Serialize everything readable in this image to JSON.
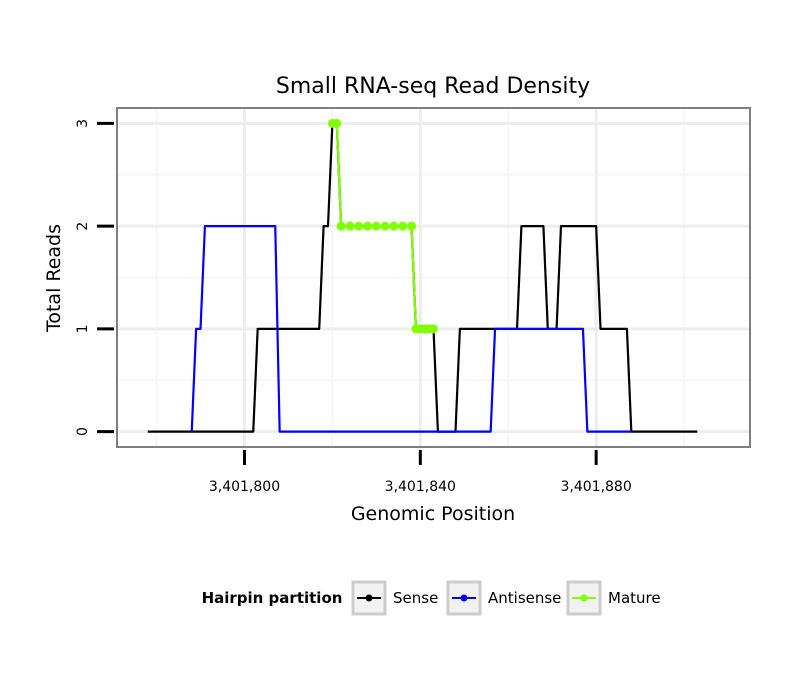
{
  "chart_data": {
    "type": "line",
    "title": "Small RNA-seq Read Density",
    "xlabel": "Genomic Position",
    "ylabel": "Total Reads",
    "xlim": [
      3401771,
      3401915
    ],
    "ylim": [
      -0.15,
      3.15
    ],
    "x_ticks": [
      3401800,
      3401840,
      3401880
    ],
    "x_tick_labels": [
      "3,401,800",
      "3,401,840",
      "3,401,880"
    ],
    "y_ticks": [
      0,
      1,
      2,
      3
    ],
    "y_tick_labels": [
      "0",
      "1",
      "2",
      "3"
    ],
    "legend": {
      "title": "Hairpin partition",
      "placement": "bottom",
      "entries": [
        {
          "name": "Sense",
          "color": "#000000"
        },
        {
          "name": "Antisense",
          "color": "#0000ff"
        },
        {
          "name": "Mature",
          "color": "#7fff00"
        }
      ]
    },
    "series": [
      {
        "name": "Sense",
        "color": "#000000",
        "x": [
          3401778,
          3401802,
          3401803,
          3401817,
          3401818,
          3401819,
          3401820,
          3401821,
          3401822,
          3401823,
          3401838,
          3401839,
          3401843,
          3401844,
          3401848,
          3401849,
          3401862,
          3401863,
          3401868,
          3401869,
          3401871,
          3401872,
          3401880,
          3401881,
          3401887,
          3401888,
          3401903
        ],
        "y": [
          0,
          0,
          1,
          1,
          2,
          2,
          3,
          3,
          2,
          2,
          2,
          1,
          1,
          0,
          0,
          1,
          1,
          2,
          2,
          1,
          1,
          2,
          2,
          1,
          1,
          0,
          0
        ]
      },
      {
        "name": "Antisense",
        "color": "#0000ff",
        "x": [
          3401788,
          3401789,
          3401790,
          3401791,
          3401807,
          3401808,
          3401856,
          3401857,
          3401877,
          3401878,
          3401888
        ],
        "y": [
          0,
          1,
          1,
          2,
          2,
          0,
          0,
          1,
          1,
          0,
          0
        ]
      },
      {
        "name": "Mature",
        "color": "#7fff00",
        "x": [
          3401820,
          3401821,
          3401822,
          3401824,
          3401826,
          3401828,
          3401830,
          3401832,
          3401834,
          3401836,
          3401838,
          3401839,
          3401840,
          3401841,
          3401842,
          3401843
        ],
        "y": [
          3,
          3,
          2,
          2,
          2,
          2,
          2,
          2,
          2,
          2,
          2,
          1,
          1,
          1,
          1,
          1
        ]
      }
    ]
  }
}
